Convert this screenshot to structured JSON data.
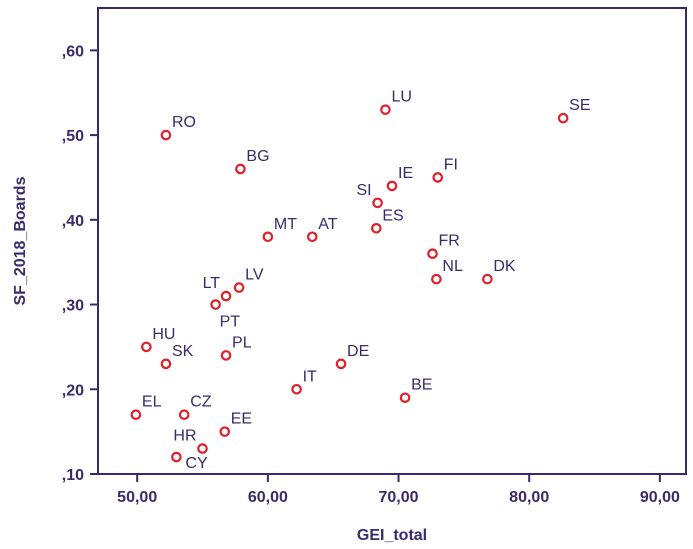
{
  "chart_data": {
    "type": "scatter",
    "xlabel": "GEI_total",
    "ylabel": "SF_2018_Boards",
    "xlim": [
      47,
      92
    ],
    "ylim": [
      0.1,
      0.65
    ],
    "x_ticks": [
      50,
      60,
      70,
      80,
      90
    ],
    "y_ticks": [
      0.1,
      0.2,
      0.3,
      0.4,
      0.5,
      0.6
    ],
    "x_tick_labels": [
      "50,00",
      "60,00",
      "70,00",
      "80,00",
      "90,00"
    ],
    "y_tick_labels": [
      ",10",
      ",20",
      ",30",
      ",40",
      ",50",
      ",60"
    ],
    "grid": false,
    "colors": {
      "marker": "#e0202a",
      "text": "#3b2a6b",
      "axis": "#3b2a6b"
    },
    "points": [
      {
        "label": "LU",
        "x": 69.0,
        "y": 0.53,
        "label_pos": "ne"
      },
      {
        "label": "SE",
        "x": 82.6,
        "y": 0.52,
        "label_pos": "ne"
      },
      {
        "label": "RO",
        "x": 52.2,
        "y": 0.5,
        "label_pos": "ne"
      },
      {
        "label": "BG",
        "x": 57.9,
        "y": 0.46,
        "label_pos": "ne"
      },
      {
        "label": "FI",
        "x": 73.0,
        "y": 0.45,
        "label_pos": "ne"
      },
      {
        "label": "IE",
        "x": 69.5,
        "y": 0.44,
        "label_pos": "ne"
      },
      {
        "label": "SI",
        "x": 68.4,
        "y": 0.42,
        "label_pos": "nw"
      },
      {
        "label": "ES",
        "x": 68.3,
        "y": 0.39,
        "label_pos": "ne"
      },
      {
        "label": "MT",
        "x": 60.0,
        "y": 0.38,
        "label_pos": "ne"
      },
      {
        "label": "AT",
        "x": 63.4,
        "y": 0.38,
        "label_pos": "ne"
      },
      {
        "label": "FR",
        "x": 72.6,
        "y": 0.36,
        "label_pos": "ne"
      },
      {
        "label": "NL",
        "x": 72.9,
        "y": 0.33,
        "label_pos": "ne"
      },
      {
        "label": "DK",
        "x": 76.8,
        "y": 0.33,
        "label_pos": "ne"
      },
      {
        "label": "LV",
        "x": 57.8,
        "y": 0.32,
        "label_pos": "ne"
      },
      {
        "label": "LT",
        "x": 56.8,
        "y": 0.31,
        "label_pos": "nw"
      },
      {
        "label": "PT",
        "x": 56.0,
        "y": 0.3,
        "label_pos": "se"
      },
      {
        "label": "HU",
        "x": 50.7,
        "y": 0.25,
        "label_pos": "ne"
      },
      {
        "label": "PL",
        "x": 56.8,
        "y": 0.24,
        "label_pos": "ne"
      },
      {
        "label": "SK",
        "x": 52.2,
        "y": 0.23,
        "label_pos": "ne"
      },
      {
        "label": "DE",
        "x": 65.6,
        "y": 0.23,
        "label_pos": "ne"
      },
      {
        "label": "IT",
        "x": 62.2,
        "y": 0.2,
        "label_pos": "ne"
      },
      {
        "label": "BE",
        "x": 70.5,
        "y": 0.19,
        "label_pos": "ne"
      },
      {
        "label": "EL",
        "x": 49.9,
        "y": 0.17,
        "label_pos": "ne"
      },
      {
        "label": "CZ",
        "x": 53.6,
        "y": 0.17,
        "label_pos": "ne"
      },
      {
        "label": "EE",
        "x": 56.7,
        "y": 0.15,
        "label_pos": "ne"
      },
      {
        "label": "HR",
        "x": 55.0,
        "y": 0.13,
        "label_pos": "nw"
      },
      {
        "label": "CY",
        "x": 53.0,
        "y": 0.12,
        "label_pos": "e"
      }
    ]
  }
}
